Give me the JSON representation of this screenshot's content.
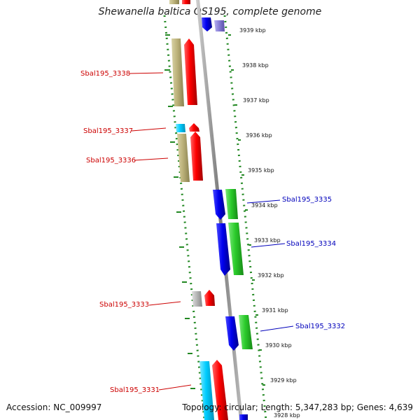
{
  "title": "Shewanella baltica OS195, complete genome",
  "footer": {
    "accession": "Accession: NC_009997",
    "summary": "Topology: circular; Length: 5,347,283 bp; Genes: 4,639"
  },
  "colors": {
    "forward_strand": "#e8000b",
    "reverse_strand": "#1a1aff",
    "label_forward": "#cc0000",
    "label_reverse": "#0000bb",
    "backbone": "#888888",
    "gc_dots": "#228822",
    "khaki": "#b9b07a",
    "green": "#33cc33",
    "cyan": "#00ccff",
    "gray": "#b0b0b0",
    "lavender": "#8a80d8"
  },
  "ticks": [
    "3939 kbp",
    "3938 kbp",
    "3937 kbp",
    "3936 kbp",
    "3935 kbp",
    "3934 kbp",
    "3933 kbp",
    "3932 kbp",
    "3931 kbp",
    "3930 kbp",
    "3929 kbp",
    "3928 kbp"
  ],
  "gene_labels": [
    {
      "text": "Sbal195_3338",
      "strand": "forward"
    },
    {
      "text": "Sbal195_3337",
      "strand": "forward"
    },
    {
      "text": "Sbal195_3336",
      "strand": "forward"
    },
    {
      "text": "Sbal195_3335",
      "strand": "reverse"
    },
    {
      "text": "Sbal195_3334",
      "strand": "reverse"
    },
    {
      "text": "Sbal195_3333",
      "strand": "forward"
    },
    {
      "text": "Sbal195_3332",
      "strand": "reverse"
    },
    {
      "text": "Sbal195_3331",
      "strand": "forward"
    }
  ]
}
